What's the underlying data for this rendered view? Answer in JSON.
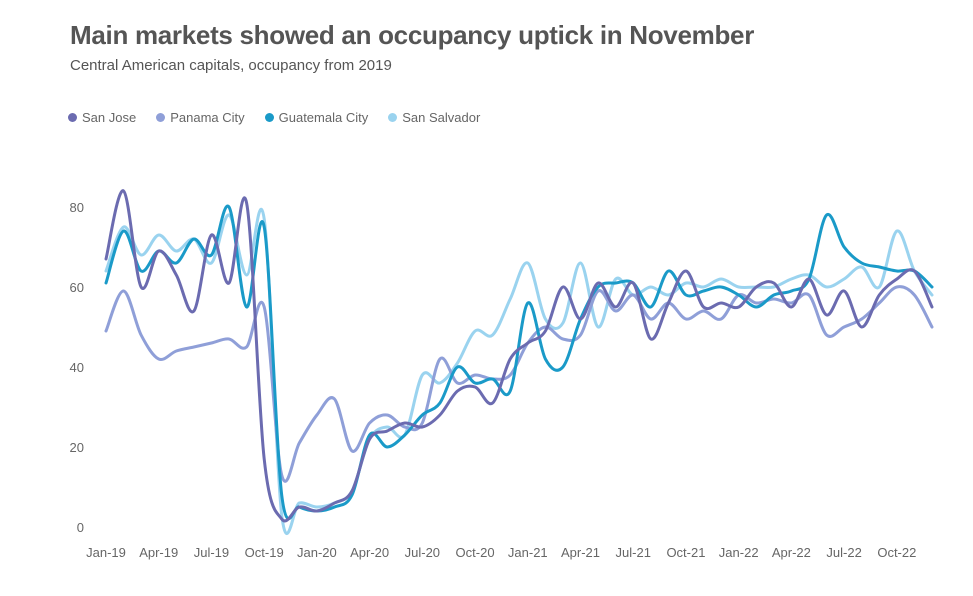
{
  "title": "Main markets showed an occupancy uptick in November",
  "subtitle": "Central American capitals, occupancy from 2019",
  "chart_data": {
    "type": "line",
    "title": "Main markets showed an occupancy uptick in November",
    "subtitle": "Central American capitals, occupancy from 2019",
    "xlabel": "",
    "ylabel": "",
    "ylim": [
      0,
      80
    ],
    "yticks": [
      0,
      20,
      40,
      60,
      80
    ],
    "grid": false,
    "legend_position": "top-left",
    "x": [
      "Jan-19",
      "Feb-19",
      "Mar-19",
      "Apr-19",
      "May-19",
      "Jun-19",
      "Jul-19",
      "Aug-19",
      "Sep-19",
      "Oct-19",
      "Nov-19",
      "Dec-19",
      "Jan-20",
      "Feb-20",
      "Mar-20",
      "Apr-20",
      "May-20",
      "Jun-20",
      "Jul-20",
      "Aug-20",
      "Sep-20",
      "Oct-20",
      "Nov-20",
      "Dec-20",
      "Jan-21",
      "Feb-21",
      "Mar-21",
      "Apr-21",
      "May-21",
      "Jun-21",
      "Jul-21",
      "Aug-21",
      "Sep-21",
      "Oct-21",
      "Nov-21",
      "Dec-21",
      "Jan-22",
      "Feb-22",
      "Mar-22",
      "Apr-22",
      "May-22",
      "Jun-22",
      "Jul-22",
      "Aug-22",
      "Sep-22",
      "Oct-22",
      "Nov-22",
      "Dec-22"
    ],
    "x_tick_labels": [
      "Jan-19",
      "Apr-19",
      "Jul-19",
      "Oct-19",
      "Jan-20",
      "Apr-20",
      "Jul-20",
      "Oct-20",
      "Jan-21",
      "Apr-21",
      "Jul-21",
      "Oct-21",
      "Jan-22",
      "Apr-22",
      "Jul-22",
      "Oct-22"
    ],
    "series": [
      {
        "name": "San Jose",
        "color": "#6b6bb0",
        "values": [
          67,
          84,
          60,
          69,
          63,
          54,
          73,
          61,
          81,
          17,
          2,
          5,
          4,
          6,
          9,
          22,
          24,
          26,
          25,
          28,
          34,
          35,
          31,
          42,
          46,
          49,
          60,
          52,
          61,
          55,
          61,
          47,
          56,
          64,
          55,
          56,
          55,
          60,
          61,
          55,
          62,
          53,
          59,
          50,
          58,
          62,
          64,
          55
        ]
      },
      {
        "name": "Panama City",
        "color": "#8f9fd8",
        "values": [
          49,
          59,
          48,
          42,
          44,
          45,
          46,
          47,
          45,
          55,
          13,
          21,
          28,
          32,
          19,
          26,
          28,
          25,
          26,
          42,
          36,
          38,
          37,
          38,
          46,
          50,
          47,
          48,
          59,
          54,
          58,
          52,
          56,
          52,
          54,
          52,
          58,
          56,
          57,
          56,
          58,
          48,
          50,
          52,
          56,
          60,
          58,
          50
        ]
      },
      {
        "name": "Guatemala City",
        "color": "#1a9ac8",
        "values": [
          61,
          74,
          64,
          69,
          66,
          72,
          68,
          80,
          55,
          75,
          8,
          5,
          4,
          5,
          8,
          23,
          20,
          23,
          28,
          31,
          40,
          36,
          37,
          34,
          56,
          42,
          40,
          52,
          60,
          61,
          61,
          55,
          64,
          58,
          59,
          60,
          58,
          55,
          58,
          59,
          62,
          78,
          70,
          66,
          65,
          64,
          64,
          60
        ]
      },
      {
        "name": "San Salvador",
        "color": "#9ad3ef",
        "values": [
          64,
          75,
          68,
          73,
          69,
          72,
          66,
          78,
          63,
          77,
          3,
          6,
          5,
          6,
          9,
          22,
          25,
          23,
          38,
          36,
          41,
          49,
          48,
          57,
          66,
          52,
          51,
          66,
          50,
          62,
          58,
          60,
          58,
          61,
          60,
          62,
          60,
          60,
          60,
          62,
          63,
          60,
          62,
          65,
          60,
          74,
          64,
          58
        ]
      }
    ]
  }
}
